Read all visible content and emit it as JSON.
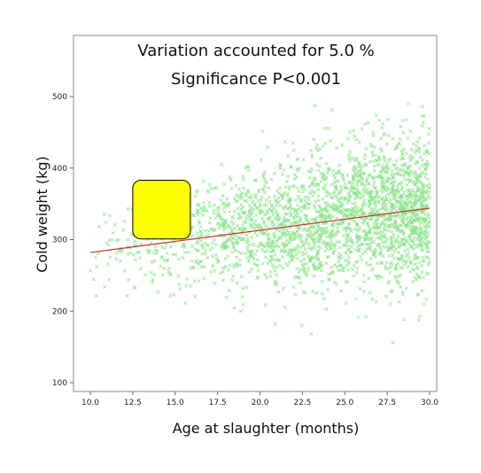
{
  "chart_data": {
    "type": "scatter",
    "title": "",
    "xlabel": "Age at slaughter (months)",
    "ylabel": "Cold weight (kg)",
    "xlim": [
      9.5,
      30.5
    ],
    "ylim": [
      90,
      560
    ],
    "xticks": [
      "10.0",
      "12.5",
      "15.0",
      "17.5",
      "20.0",
      "22.5",
      "25.0",
      "27.5",
      "30.0"
    ],
    "yticks": [
      "100",
      "200",
      "300",
      "400",
      "500"
    ],
    "grid": false,
    "legend": "none",
    "annotations": [
      "Variation accounted for 5.0 %",
      "Significance P<0.001"
    ],
    "point_color": "#2ecc2e",
    "line_color": "#c0392b",
    "box_color": "#ffff00",
    "regression": {
      "x": [
        10.0,
        30.0
      ],
      "y": [
        282,
        344
      ]
    },
    "highlight_box": {
      "x": [
        12.5,
        15.9
      ],
      "y": [
        301,
        383
      ]
    },
    "density": {
      "x_min": 10.0,
      "x_max": 30.0,
      "center_start": 282,
      "center_end": 344,
      "spread_start": 28,
      "spread_end": 55,
      "density_start": 0.05,
      "density_end": 1.0
    }
  }
}
